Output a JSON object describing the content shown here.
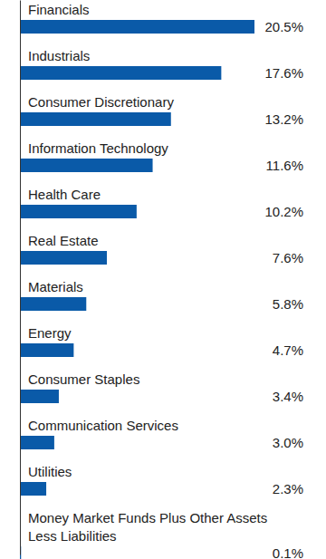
{
  "chart_data": {
    "type": "bar",
    "orientation": "horizontal",
    "categories": [
      "Financials",
      "Industrials",
      "Consumer Discretionary",
      "Information Technology",
      "Health Care",
      "Real Estate",
      "Materials",
      "Energy",
      "Consumer Staples",
      "Communication Services",
      "Utilities",
      "Money Market Funds Plus Other Assets Less Liabilities"
    ],
    "values": [
      20.5,
      17.6,
      13.2,
      11.6,
      10.2,
      7.6,
      5.8,
      4.7,
      3.4,
      3.0,
      2.3,
      0.1
    ],
    "value_labels": [
      "20.5%",
      "17.6%",
      "13.2%",
      "11.6%",
      "10.2%",
      "7.6%",
      "5.8%",
      "4.7%",
      "3.4%",
      "3.0%",
      "2.3%",
      "0.1%"
    ],
    "color": "#0a5aa8",
    "xlim": [
      0,
      20.5
    ],
    "data_labels": true,
    "tick_labels": false,
    "grid": false
  }
}
